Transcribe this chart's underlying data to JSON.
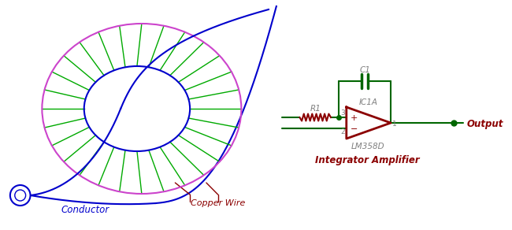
{
  "bg_color": "#ffffff",
  "coil_outer_color": "#cc44cc",
  "coil_inner_color": "#0000cc",
  "coil_wind_color": "#00aa00",
  "conductor_color": "#0000cc",
  "circuit_color": "#006600",
  "opamp_color": "#8b0000",
  "resistor_color": "#8b0000",
  "label_color": "#8b0000",
  "label_gray": "#808080",
  "output_dot_color": "#006600",
  "conductor_label": "Conductor",
  "copper_wire_label": "Copper Wire",
  "integrator_label": "Integrator Amplifier",
  "output_label": "Output",
  "r1_label": "R1",
  "c1_label": "C1",
  "ic1a_label": "IC1A",
  "lm358d_label": "LM358D"
}
